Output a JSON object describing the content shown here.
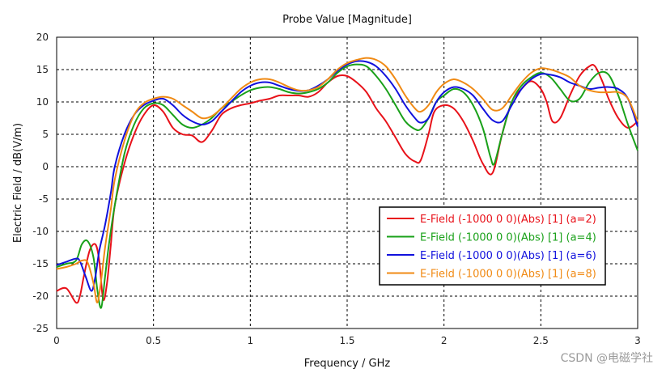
{
  "chart_data": {
    "type": "line",
    "title": "Probe Value [Magnitude]",
    "xlabel": "Frequency / GHz",
    "ylabel": "Electric Field / dB(V/m)",
    "xlim": [
      0,
      3
    ],
    "ylim": [
      -25,
      20
    ],
    "xticks": [
      0,
      0.5,
      1,
      1.5,
      2,
      2.5,
      3
    ],
    "xtick_labels": [
      "0",
      "0.5",
      "1",
      "1.5",
      "2",
      "2.5",
      "3"
    ],
    "yticks": [
      -25,
      -20,
      -15,
      -10,
      -5,
      0,
      5,
      10,
      15,
      20
    ],
    "ytick_labels": [
      "-25",
      "-20",
      "-15",
      "-10",
      "-5",
      "0",
      "5",
      "10",
      "15",
      "20"
    ],
    "grid": true,
    "legend_position": "lower-right",
    "series": [
      {
        "name": "E-Field (-1000 0 0)(Abs) [1] (a=2)",
        "color": "#e8121a",
        "x": [
          0,
          0.05,
          0.1,
          0.12,
          0.14,
          0.17,
          0.2,
          0.22,
          0.24,
          0.26,
          0.28,
          0.3,
          0.35,
          0.4,
          0.45,
          0.5,
          0.55,
          0.6,
          0.65,
          0.7,
          0.75,
          0.8,
          0.85,
          0.9,
          0.95,
          1.0,
          1.05,
          1.1,
          1.15,
          1.2,
          1.25,
          1.3,
          1.35,
          1.4,
          1.45,
          1.5,
          1.55,
          1.6,
          1.65,
          1.7,
          1.75,
          1.8,
          1.85,
          1.88,
          1.92,
          1.95,
          2.0,
          2.05,
          2.1,
          2.15,
          2.2,
          2.25,
          2.3,
          2.35,
          2.4,
          2.45,
          2.5,
          2.53,
          2.56,
          2.6,
          2.65,
          2.7,
          2.75,
          2.78,
          2.82,
          2.85,
          2.9,
          2.95,
          3.0
        ],
        "values": [
          -19.2,
          -18.8,
          -21.0,
          -20.0,
          -17.0,
          -13.0,
          -12.0,
          -14.5,
          -20.5,
          -18.0,
          -12.0,
          -6.0,
          0.5,
          5.0,
          8.0,
          9.5,
          8.5,
          6.0,
          5.0,
          4.8,
          3.8,
          5.5,
          8.0,
          9.0,
          9.5,
          9.8,
          10.2,
          10.5,
          11.0,
          11.0,
          11.0,
          10.8,
          11.5,
          13.0,
          14.0,
          14.0,
          13.0,
          11.5,
          9.0,
          7.0,
          4.5,
          2.0,
          0.8,
          1.0,
          5.0,
          8.5,
          9.5,
          9.0,
          7.0,
          4.0,
          0.5,
          -1.0,
          5.0,
          10.0,
          12.0,
          13.2,
          12.0,
          10.0,
          7.0,
          7.5,
          11.0,
          14.0,
          15.5,
          15.5,
          13.0,
          10.5,
          7.5,
          6.0,
          7.0
        ]
      },
      {
        "name": "E-Field (-1000 0 0)(Abs) [1] (a=4)",
        "color": "#1aa11a",
        "x": [
          0,
          0.05,
          0.1,
          0.13,
          0.16,
          0.19,
          0.21,
          0.23,
          0.25,
          0.27,
          0.3,
          0.35,
          0.4,
          0.45,
          0.5,
          0.55,
          0.6,
          0.65,
          0.7,
          0.75,
          0.8,
          0.85,
          0.9,
          0.95,
          1.0,
          1.05,
          1.1,
          1.15,
          1.2,
          1.25,
          1.3,
          1.35,
          1.4,
          1.45,
          1.5,
          1.55,
          1.6,
          1.65,
          1.7,
          1.75,
          1.8,
          1.85,
          1.88,
          1.92,
          1.96,
          2.0,
          2.05,
          2.1,
          2.15,
          2.2,
          2.24,
          2.26,
          2.3,
          2.35,
          2.4,
          2.45,
          2.5,
          2.55,
          2.6,
          2.65,
          2.7,
          2.75,
          2.8,
          2.85,
          2.9,
          2.95,
          3.0
        ],
        "values": [
          -15.5,
          -15.0,
          -14.5,
          -12.0,
          -11.5,
          -14.0,
          -19.0,
          -21.8,
          -17.0,
          -12.0,
          -6.0,
          2.0,
          6.5,
          9.0,
          9.8,
          9.5,
          8.0,
          6.5,
          6.0,
          6.5,
          7.5,
          9.0,
          10.0,
          11.0,
          11.8,
          12.2,
          12.3,
          12.0,
          11.5,
          11.3,
          11.5,
          12.0,
          13.0,
          14.5,
          15.5,
          15.8,
          15.5,
          14.0,
          12.0,
          9.5,
          7.0,
          5.8,
          5.8,
          7.5,
          10.0,
          11.0,
          12.0,
          11.5,
          9.5,
          6.0,
          1.5,
          0.5,
          5.0,
          10.0,
          12.5,
          13.8,
          14.5,
          13.8,
          12.0,
          10.2,
          10.5,
          13.0,
          14.5,
          14.2,
          11.0,
          6.5,
          2.5
        ]
      },
      {
        "name": "E-Field (-1000 0 0)(Abs) [1] (a=6)",
        "color": "#1111dd",
        "x": [
          0,
          0.05,
          0.1,
          0.12,
          0.15,
          0.18,
          0.2,
          0.22,
          0.25,
          0.28,
          0.3,
          0.35,
          0.4,
          0.45,
          0.5,
          0.55,
          0.6,
          0.65,
          0.7,
          0.75,
          0.8,
          0.85,
          0.9,
          0.95,
          1.0,
          1.05,
          1.1,
          1.15,
          1.2,
          1.25,
          1.3,
          1.35,
          1.4,
          1.45,
          1.5,
          1.55,
          1.6,
          1.65,
          1.7,
          1.75,
          1.8,
          1.85,
          1.88,
          1.92,
          1.96,
          2.0,
          2.05,
          2.1,
          2.15,
          2.2,
          2.25,
          2.3,
          2.35,
          2.4,
          2.45,
          2.5,
          2.55,
          2.6,
          2.65,
          2.7,
          2.75,
          2.8,
          2.85,
          2.9,
          2.95,
          3.0
        ],
        "values": [
          -15.2,
          -14.7,
          -14.2,
          -14.6,
          -17.0,
          -19.2,
          -17.0,
          -13.0,
          -9.0,
          -4.0,
          0.0,
          5.0,
          8.0,
          9.5,
          10.2,
          10.5,
          9.5,
          8.0,
          7.0,
          6.5,
          7.0,
          8.5,
          10.0,
          11.5,
          12.5,
          13.0,
          13.0,
          12.5,
          12.0,
          11.7,
          11.8,
          12.5,
          13.5,
          14.8,
          15.8,
          16.3,
          16.2,
          15.5,
          14.0,
          12.0,
          9.5,
          7.5,
          6.8,
          7.5,
          10.0,
          11.5,
          12.3,
          12.0,
          11.0,
          9.0,
          7.2,
          7.0,
          9.5,
          12.0,
          13.5,
          14.3,
          14.2,
          13.8,
          13.0,
          12.5,
          12.0,
          12.2,
          12.3,
          12.0,
          10.5,
          6.2
        ]
      },
      {
        "name": "E-Field (-1000 0 0)(Abs) [1] (a=8)",
        "color": "#f08a14",
        "x": [
          0,
          0.05,
          0.1,
          0.13,
          0.16,
          0.19,
          0.21,
          0.23,
          0.25,
          0.28,
          0.3,
          0.35,
          0.4,
          0.45,
          0.5,
          0.55,
          0.6,
          0.65,
          0.7,
          0.75,
          0.8,
          0.85,
          0.9,
          0.95,
          1.0,
          1.05,
          1.1,
          1.15,
          1.2,
          1.25,
          1.3,
          1.35,
          1.4,
          1.45,
          1.5,
          1.55,
          1.6,
          1.65,
          1.7,
          1.75,
          1.8,
          1.85,
          1.88,
          1.92,
          1.96,
          2.0,
          2.05,
          2.1,
          2.15,
          2.2,
          2.25,
          2.3,
          2.35,
          2.4,
          2.45,
          2.5,
          2.55,
          2.6,
          2.65,
          2.7,
          2.75,
          2.8,
          2.85,
          2.9,
          2.95,
          3.0
        ],
        "values": [
          -15.8,
          -15.5,
          -15.0,
          -14.5,
          -14.8,
          -18.0,
          -21.0,
          -17.5,
          -12.5,
          -6.5,
          -2.0,
          4.0,
          8.0,
          9.8,
          10.5,
          10.8,
          10.5,
          9.5,
          8.5,
          7.5,
          7.8,
          9.0,
          10.5,
          12.0,
          13.0,
          13.5,
          13.5,
          13.0,
          12.3,
          11.8,
          11.8,
          12.3,
          13.5,
          15.0,
          16.0,
          16.5,
          16.8,
          16.5,
          15.5,
          13.5,
          11.0,
          9.0,
          8.5,
          9.5,
          11.5,
          12.8,
          13.5,
          13.0,
          12.0,
          10.5,
          8.8,
          9.0,
          11.0,
          13.0,
          14.5,
          15.2,
          15.0,
          14.5,
          13.8,
          12.5,
          11.8,
          11.5,
          11.5,
          11.5,
          10.5,
          7.0
        ]
      }
    ]
  },
  "watermark": "CSDN @电磁学社"
}
